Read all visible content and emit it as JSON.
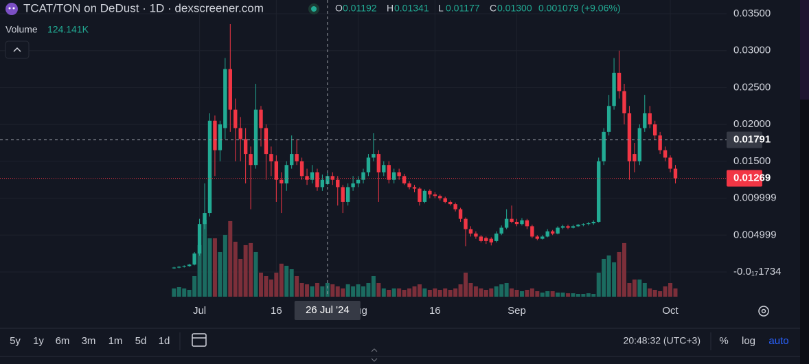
{
  "chart_data": {
    "type": "candlestick",
    "title": "TCAT/TON on DeDust · 1D · dexscreener.com",
    "legend_ohlc": [
      {
        "label": "O",
        "value": "0.01192"
      },
      {
        "label": "H",
        "value": "0.01341"
      },
      {
        "label": "L",
        "value": "0.01177"
      },
      {
        "label": "C",
        "value": "0.01300"
      }
    ],
    "legend_change": "0.001079 (+9.06%)",
    "volume_label": "Volume",
    "volume_value": "124.141K",
    "up_color": "#22ab94",
    "down_color": "#f23645",
    "up_volume_color": "#1b6b60",
    "down_volume_color": "#7c2f3a",
    "grid": true,
    "log_scale": false,
    "x": [
      "2024-06-26",
      "2024-06-27",
      "2024-06-28",
      "2024-06-29",
      "2024-06-30",
      "2024-07-01",
      "2024-07-02",
      "2024-07-03",
      "2024-07-04",
      "2024-07-05",
      "2024-07-06",
      "2024-07-07",
      "2024-07-08",
      "2024-07-09",
      "2024-07-10",
      "2024-07-11",
      "2024-07-12",
      "2024-07-13",
      "2024-07-14",
      "2024-07-15",
      "2024-07-16",
      "2024-07-17",
      "2024-07-18",
      "2024-07-19",
      "2024-07-20",
      "2024-07-21",
      "2024-07-22",
      "2024-07-23",
      "2024-07-24",
      "2024-07-25",
      "2024-07-26",
      "2024-07-27",
      "2024-07-28",
      "2024-07-29",
      "2024-07-30",
      "2024-07-31",
      "2024-08-01",
      "2024-08-02",
      "2024-08-03",
      "2024-08-04",
      "2024-08-05",
      "2024-08-06",
      "2024-08-07",
      "2024-08-08",
      "2024-08-09",
      "2024-08-10",
      "2024-08-11",
      "2024-08-12",
      "2024-08-13",
      "2024-08-14",
      "2024-08-15",
      "2024-08-16",
      "2024-08-17",
      "2024-08-18",
      "2024-08-19",
      "2024-08-20",
      "2024-08-21",
      "2024-08-22",
      "2024-08-23",
      "2024-08-24",
      "2024-08-25",
      "2024-08-26",
      "2024-08-27",
      "2024-08-28",
      "2024-08-29",
      "2024-08-30",
      "2024-08-31",
      "2024-09-01",
      "2024-09-02",
      "2024-09-03",
      "2024-09-04",
      "2024-09-05",
      "2024-09-06",
      "2024-09-07",
      "2024-09-08",
      "2024-09-09",
      "2024-09-10",
      "2024-09-11",
      "2024-09-12",
      "2024-09-13",
      "2024-09-14",
      "2024-09-15",
      "2024-09-16",
      "2024-09-17",
      "2024-09-18",
      "2024-09-19",
      "2024-09-20",
      "2024-09-21",
      "2024-09-22",
      "2024-09-23",
      "2024-09-24",
      "2024-09-25",
      "2024-09-26",
      "2024-09-27",
      "2024-09-28",
      "2024-09-29",
      "2024-09-30",
      "2024-10-01",
      "2024-10-02"
    ],
    "open": [
      0.0005,
      0.0006,
      0.0007,
      0.0008,
      0.001,
      0.0025,
      0.0065,
      0.008,
      0.0205,
      0.0165,
      0.0195,
      0.0275,
      0.022,
      0.0195,
      0.018,
      0.016,
      0.0145,
      0.022,
      0.0195,
      0.016,
      0.015,
      0.0125,
      0.012,
      0.0145,
      0.016,
      0.015,
      0.013,
      0.0125,
      0.0135,
      0.0115,
      0.01192,
      0.013,
      0.0125,
      0.0115,
      0.0095,
      0.0115,
      0.012,
      0.0125,
      0.0135,
      0.0155,
      0.016,
      0.0135,
      0.0145,
      0.0125,
      0.0135,
      0.013,
      0.012,
      0.0115,
      0.0113,
      0.0095,
      0.011,
      0.0105,
      0.0103,
      0.01,
      0.0095,
      0.0092,
      0.0085,
      0.0072,
      0.0058,
      0.0052,
      0.0048,
      0.0046,
      0.0045,
      0.0042,
      0.0052,
      0.006,
      0.0072,
      0.0068,
      0.0065,
      0.007,
      0.0062,
      0.0048,
      0.0045,
      0.0048,
      0.0055,
      0.0052,
      0.006,
      0.0062,
      0.006,
      0.0062,
      0.0064,
      0.0065,
      0.0066,
      0.0068,
      0.015,
      0.019,
      0.0225,
      0.027,
      0.0245,
      0.0215,
      0.016,
      0.015,
      0.0195,
      0.0215,
      0.02,
      0.0185,
      0.0165,
      0.0155,
      0.014
    ],
    "high": [
      0.0007,
      0.0008,
      0.0009,
      0.0011,
      0.0027,
      0.0072,
      0.012,
      0.0215,
      0.0212,
      0.0205,
      0.029,
      0.0336,
      0.0235,
      0.021,
      0.0195,
      0.017,
      0.0255,
      0.0225,
      0.02,
      0.017,
      0.0158,
      0.0135,
      0.015,
      0.0185,
      0.018,
      0.0155,
      0.014,
      0.0145,
      0.014,
      0.0132,
      0.01341,
      0.0135,
      0.013,
      0.0118,
      0.012,
      0.013,
      0.013,
      0.014,
      0.016,
      0.0188,
      0.0165,
      0.015,
      0.015,
      0.014,
      0.014,
      0.0133,
      0.0123,
      0.0118,
      0.0115,
      0.0112,
      0.0112,
      0.0108,
      0.0105,
      0.0102,
      0.0097,
      0.0094,
      0.0087,
      0.0074,
      0.0062,
      0.0055,
      0.005,
      0.0048,
      0.0047,
      0.0055,
      0.0063,
      0.0085,
      0.009,
      0.0072,
      0.0073,
      0.0072,
      0.0064,
      0.005,
      0.005,
      0.0058,
      0.0057,
      0.0062,
      0.0064,
      0.0064,
      0.0064,
      0.0065,
      0.0066,
      0.0068,
      0.007,
      0.0155,
      0.0195,
      0.024,
      0.029,
      0.03,
      0.0255,
      0.0225,
      0.0175,
      0.02,
      0.024,
      0.0225,
      0.0205,
      0.019,
      0.017,
      0.0158,
      0.0145
    ],
    "low": [
      0.0004,
      0.0005,
      0.0006,
      0.0007,
      0.0009,
      0.0022,
      0.0058,
      0.0075,
      0.013,
      0.015,
      0.018,
      0.019,
      0.015,
      0.015,
      0.012,
      0.0085,
      0.014,
      0.017,
      0.0125,
      0.013,
      0.0095,
      0.008,
      0.011,
      0.014,
      0.0145,
      0.0125,
      0.0118,
      0.012,
      0.011,
      0.011,
      0.01177,
      0.0118,
      0.009,
      0.008,
      0.009,
      0.011,
      0.0115,
      0.012,
      0.013,
      0.015,
      0.0095,
      0.013,
      0.012,
      0.012,
      0.0125,
      0.0118,
      0.0112,
      0.0108,
      0.009,
      0.0093,
      0.01,
      0.01,
      0.0097,
      0.0093,
      0.009,
      0.0082,
      0.0068,
      0.0035,
      0.0048,
      0.0045,
      0.004,
      0.0038,
      0.0036,
      0.004,
      0.005,
      0.0058,
      0.0066,
      0.0062,
      0.0063,
      0.0058,
      0.0046,
      0.0043,
      0.0044,
      0.0047,
      0.005,
      0.0051,
      0.0058,
      0.0058,
      0.0059,
      0.0061,
      0.0062,
      0.0063,
      0.0064,
      0.0067,
      0.0145,
      0.0185,
      0.022,
      0.0235,
      0.02,
      0.0125,
      0.0135,
      0.0145,
      0.019,
      0.0195,
      0.018,
      0.016,
      0.015,
      0.0135,
      0.012
    ],
    "close": [
      0.0006,
      0.0007,
      0.0008,
      0.001,
      0.0025,
      0.0065,
      0.008,
      0.0205,
      0.0165,
      0.02,
      0.0275,
      0.022,
      0.0195,
      0.018,
      0.016,
      0.0145,
      0.022,
      0.0195,
      0.016,
      0.015,
      0.0125,
      0.012,
      0.0145,
      0.016,
      0.015,
      0.013,
      0.0125,
      0.0135,
      0.0115,
      0.0125,
      0.013,
      0.0125,
      0.0115,
      0.0095,
      0.0115,
      0.012,
      0.0125,
      0.0135,
      0.0155,
      0.016,
      0.0135,
      0.0145,
      0.0125,
      0.0135,
      0.013,
      0.012,
      0.0115,
      0.0113,
      0.0095,
      0.011,
      0.0105,
      0.0103,
      0.01,
      0.0095,
      0.0092,
      0.0085,
      0.0072,
      0.0058,
      0.0052,
      0.0048,
      0.0042,
      0.0042,
      0.004,
      0.0052,
      0.006,
      0.0072,
      0.0068,
      0.0065,
      0.007,
      0.0062,
      0.0048,
      0.0045,
      0.0048,
      0.0055,
      0.0052,
      0.006,
      0.0062,
      0.006,
      0.0062,
      0.0064,
      0.0065,
      0.0066,
      0.0068,
      0.015,
      0.019,
      0.0225,
      0.027,
      0.0245,
      0.0215,
      0.015,
      0.015,
      0.0195,
      0.0215,
      0.02,
      0.0185,
      0.0165,
      0.0155,
      0.014,
      0.01269
    ],
    "volume": [
      74400,
      86800,
      74400,
      62000,
      186000,
      465000,
      694000,
      527000,
      527000,
      403000,
      558000,
      682000,
      496000,
      341000,
      465000,
      484000,
      403000,
      217000,
      186000,
      155000,
      217000,
      298000,
      279000,
      248000,
      186000,
      124000,
      112000,
      93000,
      124000,
      93000,
      124141,
      112000,
      93000,
      74400,
      112000,
      93000,
      111600,
      93000,
      124000,
      186000,
      124000,
      74400,
      62000,
      74400,
      74400,
      62000,
      74400,
      93000,
      111600,
      74400,
      62000,
      74400,
      62000,
      74400,
      62000,
      74400,
      111600,
      217000,
      124000,
      93000,
      74400,
      62000,
      74400,
      93000,
      111600,
      124000,
      74400,
      62000,
      49600,
      62000,
      74400,
      49600,
      37200,
      49600,
      49600,
      37200,
      37200,
      31000,
      31000,
      24800,
      24800,
      31000,
      24800,
      217000,
      341000,
      372000,
      310000,
      403000,
      484000,
      124000,
      155000,
      155000,
      124000,
      74400,
      62000,
      49600,
      93000,
      124000,
      74400
    ],
    "xlim": [
      "2024-05-23",
      "2024-10-12"
    ],
    "xticks": [
      {
        "value": "2024-07-01",
        "label": "Jul"
      },
      {
        "value": "2024-07-16",
        "label": "16"
      },
      {
        "value": "2024-08-01",
        "label": "Aug"
      },
      {
        "value": "2024-08-16",
        "label": "16"
      },
      {
        "value": "2024-09-01",
        "label": "Sep"
      },
      {
        "value": "2024-10-01",
        "label": "Oct"
      }
    ],
    "ylim": [
      -0.00335,
      0.03686
    ],
    "yticks": [
      {
        "value": 0.035,
        "label": "0.03500"
      },
      {
        "value": 0.03,
        "label": "0.03000"
      },
      {
        "value": 0.025,
        "label": "0.02500"
      },
      {
        "value": 0.02,
        "label": "0.02000"
      },
      {
        "value": 0.015,
        "label": "0.01500"
      },
      {
        "value": 0.009999,
        "label": "0.009999"
      },
      {
        "value": 0.004999,
        "label": "0.004999"
      },
      {
        "value": -1.734e-18,
        "label": "-0.0₁₇1734"
      }
    ],
    "crosshair": {
      "x": "2024-07-26",
      "label": "26 Jul '24",
      "price": 0.01791
    },
    "ranges": [
      "5y",
      "1y",
      "6m",
      "3m",
      "1m",
      "5d",
      "1d"
    ],
    "clock": "20:48:32 (UTC+3)",
    "scale_buttons": [
      "%",
      "log",
      "auto"
    ]
  }
}
